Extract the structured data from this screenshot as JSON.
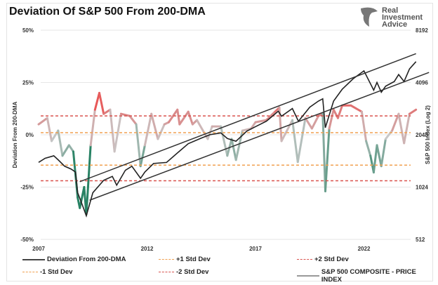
{
  "title": "Deviation Of S&P 500 From 200-DMA",
  "logo": {
    "line1": "Real",
    "line2": "Investment",
    "line3": "Advice"
  },
  "chart_data": {
    "type": "line",
    "title": "Deviation Of S&P 500 From 200-DMA",
    "ylabel": "Deviation From 200-DMA",
    "y2label": "S&P 500 Index (Log 2)",
    "xlim": [
      2007,
      2025.2
    ],
    "ylim": [
      -50,
      50
    ],
    "y2lim": [
      512,
      8192
    ],
    "xticks": [
      "2007",
      "2012",
      "2017",
      "2022"
    ],
    "yticks": [
      "50%",
      "25%",
      "0%",
      "-25%",
      "-50%"
    ],
    "y2ticks": [
      "8192",
      "4096",
      "2048",
      "1024",
      "512"
    ],
    "legend": {
      "placement": "bottom",
      "entries": [
        "Deviation From 200-DMA",
        "+1 Std Dev",
        "+2 Std Dev",
        "-1 Std Dev",
        "-2 Std Dev",
        "S&P 500 COMPOSITE - PRICE INDEX"
      ]
    },
    "std_lines": [
      {
        "name": "+2 Std Dev",
        "value": 9,
        "color": "#d9534f"
      },
      {
        "name": "+1 Std Dev",
        "value": 1,
        "color": "#f0a050"
      },
      {
        "name": "-1 Std Dev",
        "value": -14.5,
        "color": "#f0a050"
      },
      {
        "name": "-2 Std Dev",
        "value": -22,
        "color": "#d9534f"
      }
    ],
    "deviation": {
      "x": [
        2007.0,
        2007.4,
        2007.6,
        2007.9,
        2008.1,
        2008.4,
        2008.6,
        2008.8,
        2008.9,
        2009.1,
        2009.2,
        2009.4,
        2009.6,
        2009.8,
        2010.0,
        2010.3,
        2010.5,
        2010.8,
        2011.2,
        2011.5,
        2011.7,
        2011.9,
        2012.2,
        2012.5,
        2012.8,
        2013.0,
        2013.4,
        2013.5,
        2013.9,
        2014.1,
        2014.3,
        2014.8,
        2015.0,
        2015.4,
        2015.7,
        2015.9,
        2016.1,
        2016.4,
        2016.8,
        2017.0,
        2017.5,
        2017.9,
        2018.1,
        2018.2,
        2018.7,
        2018.95,
        2019.3,
        2019.6,
        2019.9,
        2020.1,
        2020.22,
        2020.4,
        2020.6,
        2020.8,
        2021.0,
        2021.4,
        2021.9,
        2022.1,
        2022.3,
        2022.45,
        2022.6,
        2022.8,
        2023.0,
        2023.3,
        2023.6,
        2023.85,
        2024.1,
        2024.4
      ],
      "y": [
        5,
        8,
        -3,
        2,
        -10,
        -5,
        -8,
        -30,
        -35,
        -25,
        -38,
        -5,
        12,
        20,
        10,
        12,
        -8,
        10,
        9,
        5,
        -15,
        -5,
        10,
        -2,
        5,
        6,
        12,
        5,
        11,
        5,
        7,
        -2,
        4,
        4,
        -10,
        -2,
        -12,
        2,
        3,
        6,
        7,
        11,
        13,
        -3,
        7,
        -13,
        8,
        3,
        9,
        10,
        -27,
        3,
        12,
        8,
        14,
        14,
        11,
        -3,
        -10,
        -18,
        -5,
        -15,
        -2,
        2,
        10,
        -4,
        10,
        12
      ]
    },
    "price": {
      "x": [
        2007.0,
        2007.3,
        2007.7,
        2007.9,
        2008.2,
        2008.5,
        2008.7,
        2008.8,
        2008.95,
        2009.2,
        2009.5,
        2010.0,
        2010.4,
        2010.6,
        2011.0,
        2011.3,
        2011.7,
        2011.9,
        2012.3,
        2012.9,
        2013.5,
        2013.9,
        2014.5,
        2014.9,
        2015.4,
        2015.7,
        2016.1,
        2016.6,
        2017.0,
        2017.5,
        2018.05,
        2018.2,
        2018.7,
        2018.98,
        2019.5,
        2019.9,
        2020.1,
        2020.22,
        2020.6,
        2021.0,
        2021.5,
        2022.0,
        2022.45,
        2022.6,
        2022.8,
        2023.0,
        2023.4,
        2023.6,
        2023.85,
        2024.1,
        2024.4
      ],
      "y": [
        1420,
        1500,
        1550,
        1470,
        1350,
        1300,
        1250,
        950,
        850,
        700,
        950,
        1120,
        1180,
        1050,
        1280,
        1350,
        1150,
        1250,
        1400,
        1420,
        1650,
        1820,
        1960,
        2050,
        2100,
        1950,
        1880,
        2150,
        2280,
        2450,
        2800,
        2620,
        2900,
        2450,
        2950,
        3200,
        3300,
        2250,
        3200,
        3750,
        4300,
        4780,
        3700,
        4100,
        3600,
        3900,
        4150,
        4550,
        4150,
        4900,
        5400
      ]
    },
    "channel": [
      {
        "name": "upper",
        "x": [
          2008.9,
          2024.4
        ],
        "y": [
          1100,
          6000
        ]
      },
      {
        "name": "lower",
        "x": [
          2009.35,
          2025.0
        ],
        "y": [
          860,
          4680
        ]
      }
    ]
  }
}
